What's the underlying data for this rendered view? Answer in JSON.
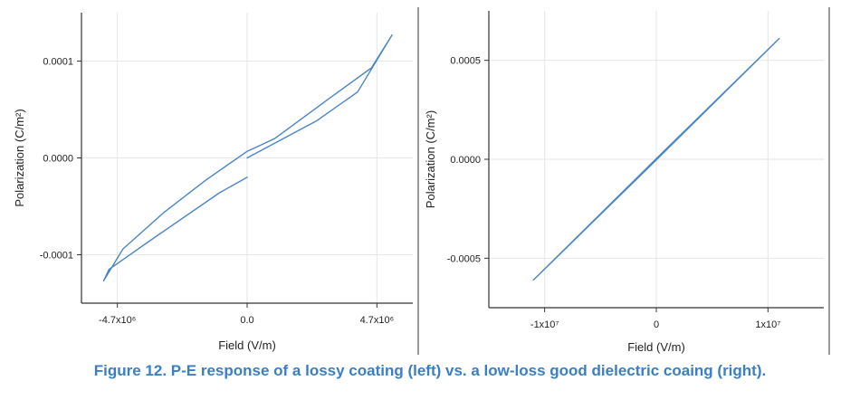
{
  "caption": "Figure 12. P-E response of a lossy coating (left) vs. a low-loss good dielectric coaing (right).",
  "colors": {
    "trace": "#4a86c5",
    "axis": "#333333",
    "grid": "#e6e6e6",
    "caption": "#3a7fc4"
  },
  "chart_data": [
    {
      "type": "line",
      "title": "",
      "xlabel": "Field (V/m)",
      "ylabel": "Polarization (C/m²)",
      "xlim": [
        -6000000,
        6000000
      ],
      "ylim": [
        -0.00015,
        0.00015
      ],
      "grid": true,
      "xticks": [
        {
          "value": -4700000,
          "label": "-4.7x10⁶"
        },
        {
          "value": 0,
          "label": "0.0"
        },
        {
          "value": 4700000,
          "label": "4.7x10⁶"
        }
      ],
      "yticks": [
        {
          "value": 0.0001,
          "label": "0.0001"
        },
        {
          "value": 0,
          "label": "0.0000"
        },
        {
          "value": -0.0001,
          "label": "-0.0001"
        }
      ],
      "series": [
        {
          "x": [
            0,
            2500000,
            4000000,
            5250000,
            4500000,
            3000000,
            1000000,
            0,
            -1500000,
            -3000000,
            -4500000,
            -5200000,
            -5000000,
            -3500000,
            -1000000,
            0
          ],
          "y": [
            0.0,
            3.8e-05,
            6.8e-05,
            0.000127,
            9.3e-05,
            6.2e-05,
            2e-05,
            6.8e-06,
            -2.3e-05,
            -5.6e-05,
            -9.4e-05,
            -0.000127,
            -0.000115,
            -8.5e-05,
            -3.6e-05,
            -2e-05
          ]
        }
      ]
    },
    {
      "type": "line",
      "title": "",
      "xlabel": "Field (V/m)",
      "ylabel": "Polarization (C/m²)",
      "xlim": [
        -15000000,
        15000000
      ],
      "ylim": [
        -0.00075,
        0.00075
      ],
      "grid": true,
      "xticks": [
        {
          "value": -10000000,
          "label": "-1x10⁷"
        },
        {
          "value": 0,
          "label": "0"
        },
        {
          "value": 10000000,
          "label": "1x10⁷"
        }
      ],
      "yticks": [
        {
          "value": 0.0005,
          "label": "0.0005"
        },
        {
          "value": 0,
          "label": "0.0000"
        },
        {
          "value": -0.0005,
          "label": "-0.0005"
        }
      ],
      "series": [
        {
          "x": [
            -11000000,
            0,
            11000000,
            0,
            -11000000
          ],
          "y": [
            -0.00061,
            3e-06,
            0.00061,
            -3e-06,
            -0.00061
          ]
        }
      ]
    }
  ]
}
